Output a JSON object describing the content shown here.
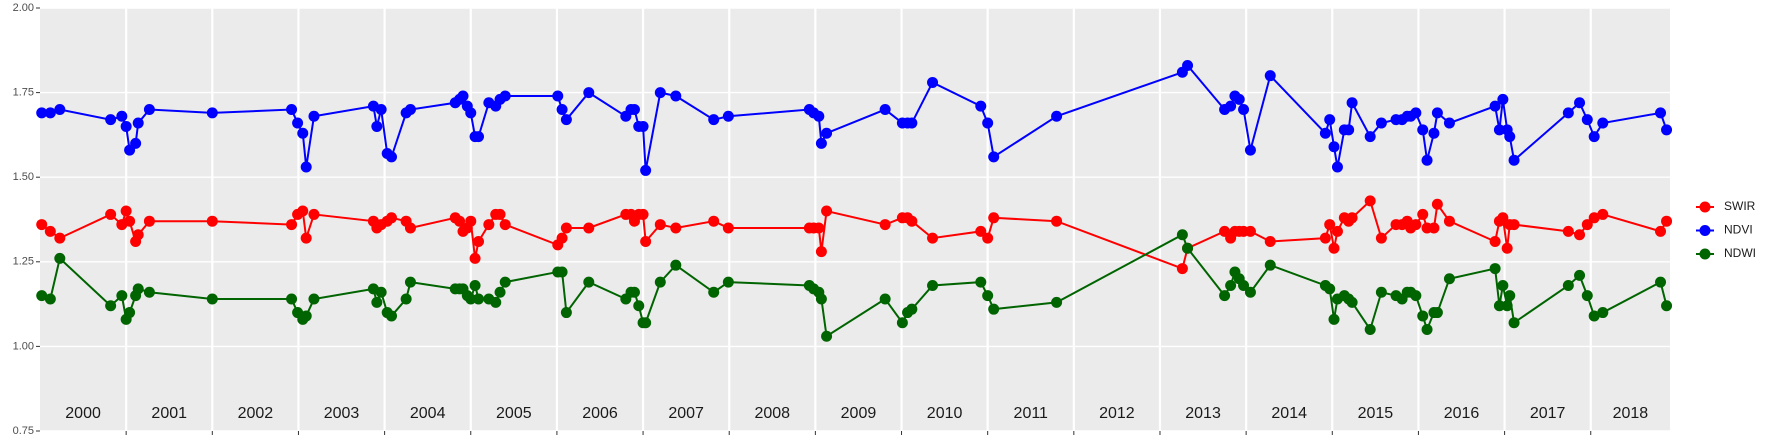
{
  "chart_data": {
    "type": "line",
    "x": [
      2000.02,
      2000.12,
      2000.23,
      2000.82,
      2000.95,
      2001.0,
      2001.04,
      2001.11,
      2001.14,
      2001.27,
      2002.0,
      2002.92,
      2002.99,
      2003.05,
      2003.09,
      2003.18,
      2003.87,
      2003.91,
      2003.96,
      2004.03,
      2004.08,
      2004.25,
      2004.3,
      2004.82,
      2004.87,
      2004.91,
      2004.96,
      2005.0,
      2005.05,
      2005.09,
      2005.21,
      2005.29,
      2005.34,
      2005.4,
      2006.01,
      2006.06,
      2006.11,
      2006.37,
      2006.8,
      2006.86,
      2006.9,
      2006.95,
      2007.0,
      2007.03,
      2007.2,
      2007.38,
      2007.82,
      2007.99,
      2008.93,
      2008.98,
      2009.04,
      2009.07,
      2009.13,
      2009.81,
      2010.01,
      2010.07,
      2010.12,
      2010.36,
      2010.92,
      2011.0,
      2011.07,
      2011.8,
      2013.26,
      2013.32,
      2013.75,
      2013.82,
      2013.87,
      2013.92,
      2013.97,
      2014.05,
      2014.28,
      2014.92,
      2014.97,
      2015.02,
      2015.06,
      2015.14,
      2015.19,
      2015.23,
      2015.44,
      2015.57,
      2015.74,
      2015.81,
      2015.87,
      2015.91,
      2015.97,
      2016.05,
      2016.1,
      2016.18,
      2016.22,
      2016.36,
      2016.89,
      2016.94,
      2016.98,
      2017.03,
      2017.06,
      2017.11,
      2017.74,
      2017.87,
      2017.96,
      2018.04,
      2018.14,
      2018.81,
      2018.88
    ],
    "series": [
      {
        "name": "SWIR",
        "color": "#ff0000",
        "values": [
          1.36,
          1.34,
          1.32,
          1.39,
          1.36,
          1.4,
          1.37,
          1.31,
          1.33,
          1.37,
          1.37,
          1.36,
          1.39,
          1.4,
          1.32,
          1.39,
          1.37,
          1.35,
          1.36,
          1.37,
          1.38,
          1.37,
          1.35,
          1.38,
          1.37,
          1.34,
          1.35,
          1.37,
          1.26,
          1.31,
          1.36,
          1.39,
          1.39,
          1.36,
          1.3,
          1.32,
          1.35,
          1.35,
          1.39,
          1.39,
          1.37,
          1.39,
          1.39,
          1.31,
          1.36,
          1.35,
          1.37,
          1.35,
          1.35,
          1.35,
          1.35,
          1.28,
          1.4,
          1.36,
          1.38,
          1.38,
          1.37,
          1.32,
          1.34,
          1.32,
          1.38,
          1.37,
          1.23,
          1.29,
          1.34,
          1.32,
          1.34,
          1.34,
          1.34,
          1.34,
          1.31,
          1.32,
          1.36,
          1.29,
          1.34,
          1.38,
          1.37,
          1.38,
          1.43,
          1.32,
          1.36,
          1.36,
          1.37,
          1.35,
          1.36,
          1.39,
          1.35,
          1.35,
          1.42,
          1.37,
          1.31,
          1.37,
          1.38,
          1.29,
          1.36,
          1.36,
          1.34,
          1.33,
          1.36,
          1.38,
          1.39,
          1.34,
          1.37
        ]
      },
      {
        "name": "NDVI",
        "color": "#0000ff",
        "values": [
          1.69,
          1.69,
          1.7,
          1.67,
          1.68,
          1.65,
          1.58,
          1.6,
          1.66,
          1.7,
          1.69,
          1.7,
          1.66,
          1.63,
          1.53,
          1.68,
          1.71,
          1.65,
          1.7,
          1.57,
          1.56,
          1.69,
          1.7,
          1.72,
          1.73,
          1.74,
          1.71,
          1.69,
          1.62,
          1.62,
          1.72,
          1.71,
          1.73,
          1.74,
          1.74,
          1.7,
          1.67,
          1.75,
          1.68,
          1.7,
          1.7,
          1.65,
          1.65,
          1.52,
          1.75,
          1.74,
          1.67,
          1.68,
          1.7,
          1.69,
          1.68,
          1.6,
          1.63,
          1.7,
          1.66,
          1.66,
          1.66,
          1.78,
          1.71,
          1.66,
          1.56,
          1.68,
          1.81,
          1.83,
          1.7,
          1.71,
          1.74,
          1.73,
          1.7,
          1.58,
          1.8,
          1.63,
          1.67,
          1.59,
          1.53,
          1.64,
          1.64,
          1.72,
          1.62,
          1.66,
          1.67,
          1.67,
          1.68,
          1.68,
          1.69,
          1.64,
          1.55,
          1.63,
          1.69,
          1.66,
          1.71,
          1.64,
          1.73,
          1.64,
          1.62,
          1.55,
          1.69,
          1.72,
          1.67,
          1.62,
          1.66,
          1.69,
          1.64
        ]
      },
      {
        "name": "NDWI",
        "color": "#006400",
        "values": [
          1.15,
          1.14,
          1.26,
          1.12,
          1.15,
          1.08,
          1.1,
          1.15,
          1.17,
          1.16,
          1.14,
          1.14,
          1.1,
          1.08,
          1.09,
          1.14,
          1.17,
          1.13,
          1.16,
          1.1,
          1.09,
          1.14,
          1.19,
          1.17,
          1.17,
          1.17,
          1.15,
          1.14,
          1.18,
          1.14,
          1.14,
          1.13,
          1.16,
          1.19,
          1.22,
          1.22,
          1.1,
          1.19,
          1.14,
          1.16,
          1.16,
          1.12,
          1.07,
          1.07,
          1.19,
          1.24,
          1.16,
          1.19,
          1.18,
          1.17,
          1.16,
          1.14,
          1.03,
          1.14,
          1.07,
          1.1,
          1.11,
          1.18,
          1.19,
          1.15,
          1.11,
          1.13,
          1.33,
          1.29,
          1.15,
          1.18,
          1.22,
          1.2,
          1.18,
          1.16,
          1.24,
          1.18,
          1.17,
          1.08,
          1.14,
          1.15,
          1.14,
          1.13,
          1.05,
          1.16,
          1.15,
          1.14,
          1.16,
          1.16,
          1.15,
          1.09,
          1.05,
          1.1,
          1.1,
          1.2,
          1.23,
          1.12,
          1.18,
          1.12,
          1.15,
          1.07,
          1.18,
          1.21,
          1.15,
          1.09,
          1.1,
          1.19,
          1.12
        ]
      }
    ],
    "xlim": [
      2000,
      2018.92
    ],
    "xticks": [
      2001,
      2002,
      2003,
      2004,
      2005,
      2006,
      2007,
      2008,
      2009,
      2010,
      2011,
      2012,
      2013,
      2014,
      2015,
      2016,
      2017,
      2018
    ],
    "year_labels": [
      "2000",
      "2001",
      "2002",
      "2003",
      "2004",
      "2005",
      "2006",
      "2007",
      "2008",
      "2009",
      "2010",
      "2011",
      "2012",
      "2013",
      "2014",
      "2015",
      "2016",
      "2017",
      "2018"
    ],
    "ylim": [
      0.75,
      2.0
    ],
    "yticks": [
      0.75,
      {
        "value": 1.0,
        "label": "1.00"
      },
      1.25,
      {
        "value": 1.5,
        "label": "1.50"
      },
      1.75,
      {
        "value": 2.0,
        "label": "2.00"
      }
    ],
    "grid": true,
    "legend": "right"
  }
}
